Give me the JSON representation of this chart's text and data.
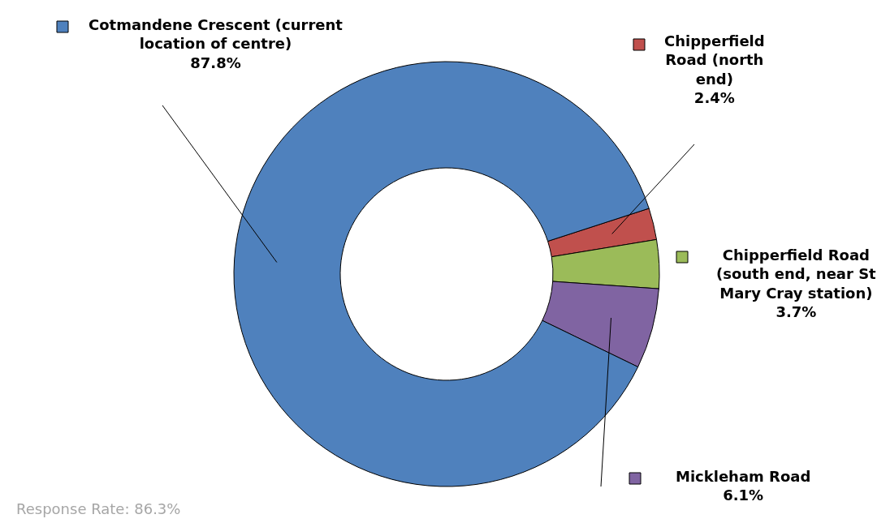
{
  "chart_data": {
    "type": "donut",
    "categories": [
      "Chipperfield Road (north end)",
      "Chipperfield Road (south end, near St Mary Cray station)",
      "Mickleham Road",
      "Cotmandene Crescent (current location of centre)"
    ],
    "values": [
      2.4,
      3.7,
      6.1,
      87.8
    ],
    "colors": [
      "#c0504d",
      "#9bbb59",
      "#8064a2",
      "#4f81bd"
    ],
    "value_labels": [
      "2.4%",
      "3.7%",
      "6.1%",
      "87.8%"
    ],
    "annotations": [
      "Response Rate: 86.3%"
    ],
    "legend": true
  }
}
